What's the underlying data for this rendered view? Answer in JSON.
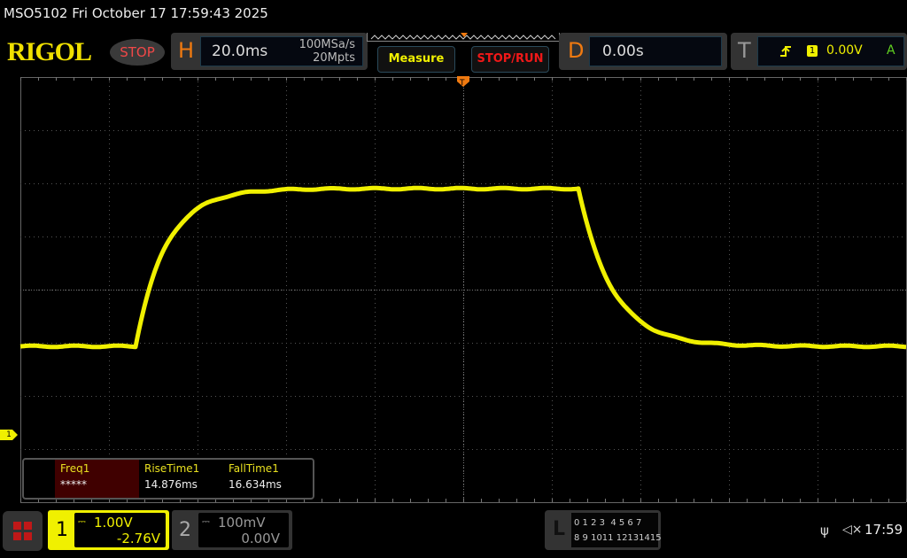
{
  "status_bar": {
    "title": "MSO5102  Fri October 17 17:59:43 2025",
    "clock": "17:59"
  },
  "brand": {
    "logo": "RIGOL",
    "run_state": "STOP"
  },
  "horizontal": {
    "label": "H",
    "timebase": "20.0ms",
    "sample_rate": "100MSa/s",
    "memory_depth": "20Mpts"
  },
  "buttons": {
    "measure": "Measure",
    "stop_run": "STOP/RUN"
  },
  "delay": {
    "label": "D",
    "value": "0.00s"
  },
  "trigger": {
    "label": "T",
    "source": "1",
    "level": "0.00V",
    "mode": "A",
    "slope_icon": "rising-edge-icon"
  },
  "measurements": [
    {
      "name": "Freq1",
      "value": "*****",
      "highlighted": true
    },
    {
      "name": "RiseTime1",
      "value": "14.876ms"
    },
    {
      "name": "FallTime1",
      "value": "16.634ms"
    }
  ],
  "channels": [
    {
      "number": "1",
      "scale": "1.00V",
      "offset": "-2.76V",
      "coupling_icon": "dc-coupling-icon",
      "active": true
    },
    {
      "number": "2",
      "scale": "100mV",
      "offset": "0.00V",
      "coupling_icon": "dc-coupling-icon",
      "active": false
    }
  ],
  "ch1_marker": "1",
  "logic": {
    "label": "L",
    "row1": "0 1 2 3  4 5 6 7",
    "row2": "8 9 1011 12131415"
  },
  "colors": {
    "ch1": "#f0f000",
    "accent": "#f07a10",
    "stop": "#f04848",
    "grid": "#555555"
  }
}
